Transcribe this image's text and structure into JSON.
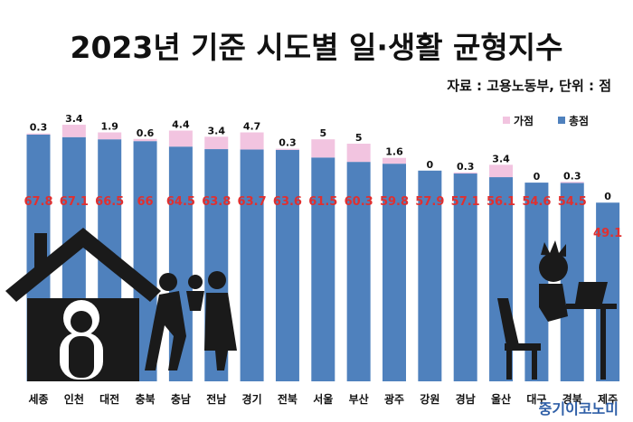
{
  "title": "2023년 기준 시도별 일·생활 균형지수",
  "source": "자료 : 고용노동부, 단위 : 점",
  "brand": "중기이코노미",
  "chart_data": {
    "type": "bar",
    "stacked": true,
    "categories": [
      "세종",
      "인천",
      "대전",
      "충북",
      "충남",
      "전남",
      "경기",
      "전북",
      "서울",
      "부산",
      "광주",
      "강원",
      "경남",
      "울산",
      "대구",
      "경북",
      "제주"
    ],
    "series": [
      {
        "name": "총점",
        "color": "#4f81bd",
        "values": [
          67.8,
          67.1,
          66.5,
          66,
          64.5,
          63.8,
          63.7,
          63.6,
          61.5,
          60.3,
          59.8,
          57.9,
          57.1,
          56.1,
          54.6,
          54.5,
          49.1
        ]
      },
      {
        "name": "가점",
        "color": "#f2c4e0",
        "values": [
          0.3,
          3.4,
          1.9,
          0.6,
          4.4,
          3.4,
          4.7,
          0.3,
          5,
          5,
          1.6,
          0,
          0.3,
          3.4,
          0,
          0.3,
          0
        ]
      }
    ],
    "legend": [
      "가점",
      "총점"
    ],
    "legend_position": "top-right",
    "ylim": [
      0,
      72.5
    ],
    "grid": false
  }
}
